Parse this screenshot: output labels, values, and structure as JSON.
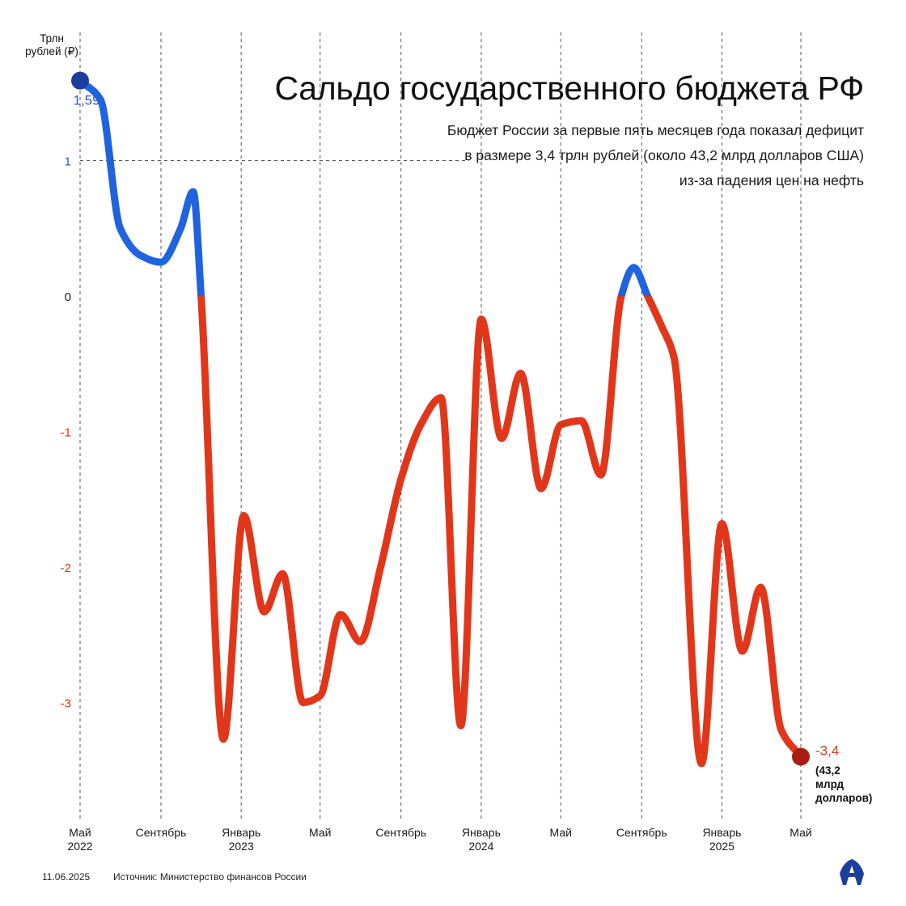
{
  "header": {
    "title": "Сальдо государственного бюджета РФ",
    "subtitle": "Бюджет России за первые пять месяцев года показал дефицит в размере 3,4 трлн рублей (около 43,2 млрд долларов США) из-за падения цен на нефть"
  },
  "unit_label": "Трлн рублей (₽)",
  "footer": {
    "date": "11.06.2025",
    "source": "Источник: Министерство финансов России"
  },
  "colors": {
    "positive": "#1f63e0",
    "negative": "#e2361a",
    "start_dot": "#1d3f9c",
    "end_dot": "#a81e12",
    "y_positive_label": "#2a5bc4",
    "y_negative_label": "#d6361d",
    "logo": "#1d3f9c"
  },
  "logo_icon": "aa-logo-icon",
  "annotations": {
    "start_value": "1,59",
    "end_value": "-3,4",
    "end_sub": "(43,2\nмлрд\nдолларов)"
  },
  "chart_data": {
    "type": "line",
    "title": "Сальдо государственного бюджета РФ",
    "ylabel": "Трлн рублей (₽)",
    "ylim": [
      -3.8,
      1.8
    ],
    "yticks": [
      1,
      0,
      -1,
      -2,
      -3
    ],
    "ytick_labels": [
      "1",
      "0",
      "-1",
      "-2",
      "-3"
    ],
    "x_start": "2022-05",
    "x_end": "2025-05",
    "x_ticks": [
      {
        "date": "2022-05",
        "label": "Май",
        "year": "2022"
      },
      {
        "date": "2022-09",
        "label": "Сентябрь",
        "year": ""
      },
      {
        "date": "2023-01",
        "label": "Январь",
        "year": "2023"
      },
      {
        "date": "2023-05",
        "label": "Май",
        "year": ""
      },
      {
        "date": "2023-09",
        "label": "Сентябрь",
        "year": ""
      },
      {
        "date": "2024-01",
        "label": "Январь",
        "year": "2024"
      },
      {
        "date": "2024-05",
        "label": "Май",
        "year": ""
      },
      {
        "date": "2024-09",
        "label": "Сентябрь",
        "year": ""
      },
      {
        "date": "2025-01",
        "label": "Январь",
        "year": "2025"
      },
      {
        "date": "2025-05",
        "label": "Май",
        "year": ""
      }
    ],
    "grid": "vertical dashed",
    "series": [
      {
        "points": [
          {
            "date": "2022-05-01",
            "value": 1.59
          },
          {
            "date": "2022-06-01",
            "value": 1.45
          },
          {
            "date": "2022-07-01",
            "value": 0.5
          },
          {
            "date": "2022-08-01",
            "value": 0.3
          },
          {
            "date": "2022-09-01",
            "value": 0.25
          },
          {
            "date": "2022-10-01",
            "value": 0.5
          },
          {
            "date": "2022-10-20",
            "value": 0.77
          },
          {
            "date": "2022-11-01",
            "value": 0.0
          },
          {
            "date": "2022-12-05",
            "value": -3.27
          },
          {
            "date": "2023-01-05",
            "value": -1.62
          },
          {
            "date": "2023-02-05",
            "value": -2.33
          },
          {
            "date": "2023-03-05",
            "value": -2.05
          },
          {
            "date": "2023-04-05",
            "value": -3.0
          },
          {
            "date": "2023-05-01",
            "value": -2.95
          },
          {
            "date": "2023-06-01",
            "value": -2.35
          },
          {
            "date": "2023-07-01",
            "value": -2.55
          },
          {
            "date": "2023-08-01",
            "value": -2.0
          },
          {
            "date": "2023-09-01",
            "value": -1.35
          },
          {
            "date": "2023-10-01",
            "value": -0.95
          },
          {
            "date": "2023-11-01",
            "value": -0.75
          },
          {
            "date": "2023-12-01",
            "value": -3.17
          },
          {
            "date": "2024-01-01",
            "value": -0.17
          },
          {
            "date": "2024-02-01",
            "value": -1.05
          },
          {
            "date": "2024-03-01",
            "value": -0.57
          },
          {
            "date": "2024-04-01",
            "value": -1.42
          },
          {
            "date": "2024-05-01",
            "value": -0.95
          },
          {
            "date": "2024-06-01",
            "value": -0.92
          },
          {
            "date": "2024-07-01",
            "value": -1.32
          },
          {
            "date": "2024-08-01",
            "value": 0.0
          },
          {
            "date": "2024-08-20",
            "value": 0.21
          },
          {
            "date": "2024-09-10",
            "value": 0.0
          },
          {
            "date": "2024-10-01",
            "value": -0.22
          },
          {
            "date": "2024-10-20",
            "value": -0.45
          },
          {
            "date": "2024-12-01",
            "value": -3.45
          },
          {
            "date": "2025-01-01",
            "value": -1.68
          },
          {
            "date": "2025-02-01",
            "value": -2.62
          },
          {
            "date": "2025-03-01",
            "value": -2.15
          },
          {
            "date": "2025-04-01",
            "value": -3.2
          },
          {
            "date": "2025-05-01",
            "value": -3.4
          }
        ]
      }
    ]
  }
}
